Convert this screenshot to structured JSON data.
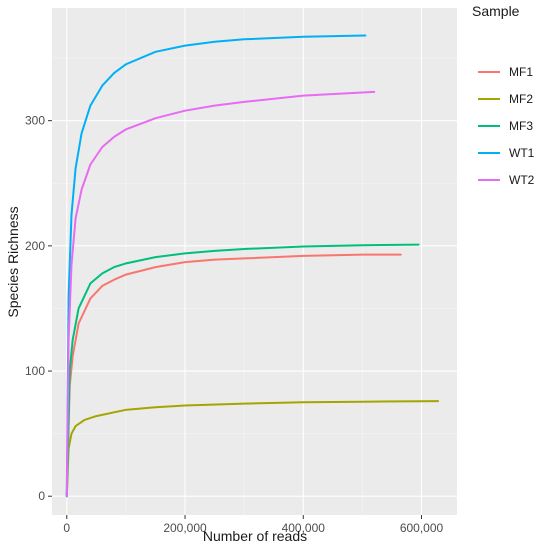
{
  "chart_data": {
    "type": "line",
    "xlabel": "Number of reads",
    "ylabel": "Species Richness",
    "xlim": [
      -25000,
      660000
    ],
    "ylim": [
      -15,
      390
    ],
    "xticks": [
      0,
      200000,
      400000,
      600000
    ],
    "xtick_labels": [
      "0",
      "200,000",
      "400,000",
      "600,000"
    ],
    "yticks": [
      0,
      100,
      200,
      300
    ],
    "ytick_labels": [
      "0",
      "100",
      "200",
      "300"
    ],
    "grid": true,
    "legend": {
      "title": "Sample",
      "position": "right"
    },
    "series": [
      {
        "name": "MF1",
        "color": "#F8766D",
        "x": [
          0,
          5000,
          10000,
          20000,
          40000,
          60000,
          80000,
          100000,
          150000,
          200000,
          250000,
          300000,
          400000,
          500000,
          565000
        ],
        "y": [
          0,
          88,
          112,
          138,
          158,
          168,
          173,
          177,
          183,
          187,
          189,
          190,
          192,
          193,
          193
        ]
      },
      {
        "name": "MF2",
        "color": "#A3A500",
        "x": [
          0,
          3000,
          8000,
          15000,
          30000,
          50000,
          80000,
          100000,
          150000,
          200000,
          300000,
          400000,
          500000,
          628000
        ],
        "y": [
          0,
          38,
          50,
          56,
          61,
          64,
          67,
          69,
          71,
          72.5,
          74,
          75,
          75.5,
          76
        ]
      },
      {
        "name": "MF3",
        "color": "#00BF7D",
        "x": [
          0,
          5000,
          10000,
          20000,
          40000,
          60000,
          80000,
          100000,
          150000,
          200000,
          250000,
          300000,
          400000,
          500000,
          595000
        ],
        "y": [
          0,
          100,
          125,
          150,
          170,
          178,
          183,
          186,
          191,
          194,
          196,
          197.5,
          199.5,
          200.5,
          201
        ]
      },
      {
        "name": "WT1",
        "color": "#00B0F6",
        "x": [
          0,
          3000,
          8000,
          15000,
          25000,
          40000,
          60000,
          80000,
          100000,
          150000,
          200000,
          250000,
          300000,
          400000,
          505000
        ],
        "y": [
          0,
          160,
          225,
          262,
          290,
          312,
          328,
          338,
          345,
          355,
          360,
          363,
          365,
          367,
          368
        ]
      },
      {
        "name": "WT2",
        "color": "#E76BF3",
        "x": [
          0,
          3000,
          8000,
          15000,
          25000,
          40000,
          60000,
          80000,
          100000,
          150000,
          200000,
          250000,
          300000,
          400000,
          520000
        ],
        "y": [
          0,
          125,
          185,
          222,
          245,
          265,
          279,
          287,
          293,
          302,
          308,
          312,
          315,
          320,
          323
        ]
      }
    ]
  }
}
